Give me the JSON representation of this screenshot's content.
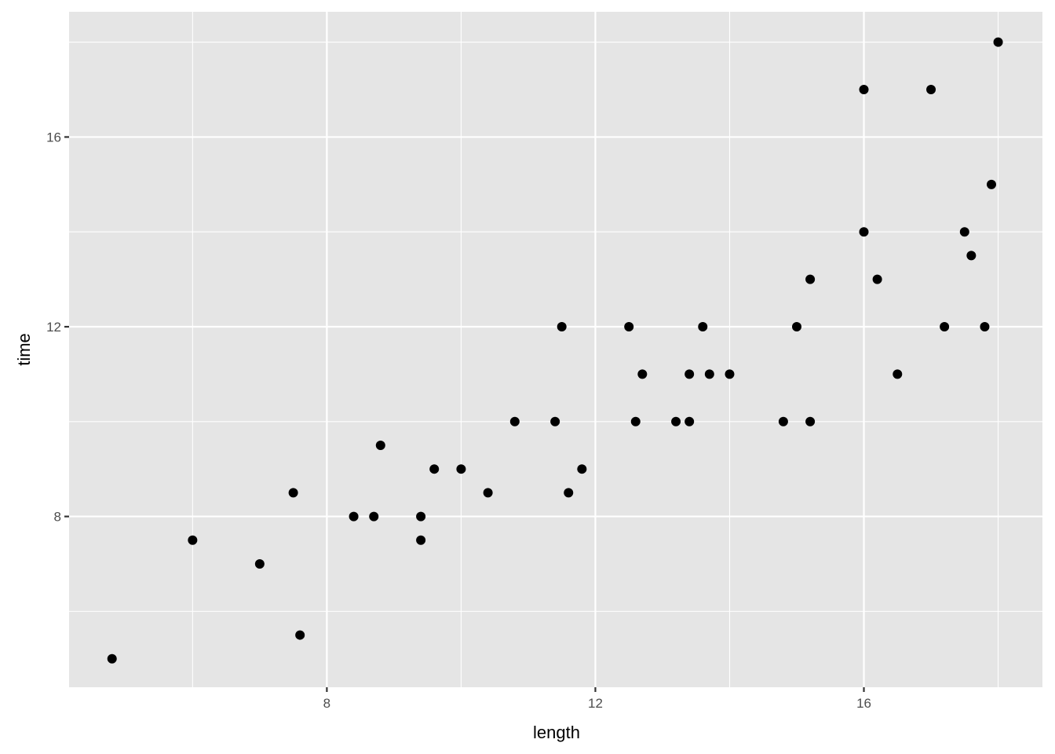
{
  "chart_data": {
    "type": "scatter",
    "xlabel": "length",
    "ylabel": "time",
    "xlim": [
      4.16,
      18.66
    ],
    "ylim": [
      4.4,
      18.64
    ],
    "x_ticks": [
      8,
      12,
      16
    ],
    "y_ticks": [
      8,
      12,
      16
    ],
    "x_tick_labels": [
      "8",
      "12",
      "16"
    ],
    "y_tick_labels": [
      "8",
      "12",
      "16"
    ],
    "x_minor": [
      6,
      10,
      14,
      18
    ],
    "y_minor": [
      6,
      10,
      14,
      18
    ],
    "grid": true,
    "colors": {
      "panel": "#e5e5e5",
      "grid": "#ffffff",
      "point": "#000000"
    },
    "points": [
      [
        4.8,
        5.0
      ],
      [
        6.0,
        7.5
      ],
      [
        7.0,
        7.0
      ],
      [
        7.5,
        8.5
      ],
      [
        7.6,
        5.5
      ],
      [
        8.4,
        8.0
      ],
      [
        8.7,
        8.0
      ],
      [
        8.8,
        9.5
      ],
      [
        9.4,
        8.0
      ],
      [
        9.4,
        7.5
      ],
      [
        9.6,
        9.0
      ],
      [
        10.0,
        9.0
      ],
      [
        10.4,
        8.5
      ],
      [
        10.8,
        10.0
      ],
      [
        11.4,
        10.0
      ],
      [
        11.5,
        12.0
      ],
      [
        11.6,
        8.5
      ],
      [
        11.8,
        9.0
      ],
      [
        12.5,
        12.0
      ],
      [
        12.6,
        10.0
      ],
      [
        12.7,
        11.0
      ],
      [
        13.2,
        10.0
      ],
      [
        13.4,
        11.0
      ],
      [
        13.4,
        10.0
      ],
      [
        13.6,
        12.0
      ],
      [
        13.7,
        11.0
      ],
      [
        14.0,
        11.0
      ],
      [
        14.8,
        10.0
      ],
      [
        15.0,
        12.0
      ],
      [
        15.2,
        13.0
      ],
      [
        15.2,
        10.0
      ],
      [
        16.0,
        17.0
      ],
      [
        16.0,
        14.0
      ],
      [
        16.2,
        13.0
      ],
      [
        16.5,
        11.0
      ],
      [
        17.0,
        17.0
      ],
      [
        17.2,
        12.0
      ],
      [
        17.5,
        14.0
      ],
      [
        17.6,
        13.5
      ],
      [
        17.8,
        12.0
      ],
      [
        17.9,
        15.0
      ],
      [
        18.0,
        18.0
      ]
    ]
  }
}
